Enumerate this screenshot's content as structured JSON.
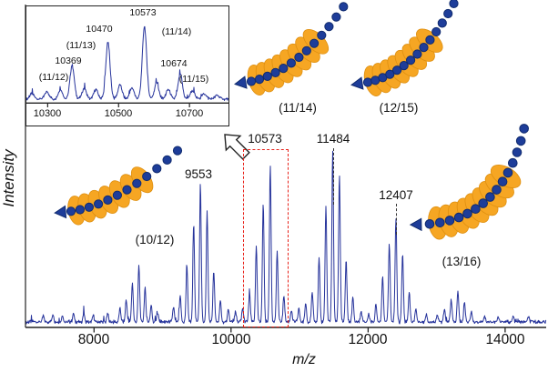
{
  "chart_data": {
    "type": "line",
    "xlabel": "m/z",
    "ylabel": "Intensity",
    "xlim": [
      7000,
      14600
    ],
    "x_ticks": [
      8000,
      10000,
      12000,
      14000
    ],
    "line_color": "#26339B",
    "peak_sigma": 12,
    "peak_labels": [
      "9553",
      "10573",
      "11484",
      "12407"
    ],
    "main_peaks": [
      [
        7260,
        0.035
      ],
      [
        7400,
        0.05
      ],
      [
        7540,
        0.04
      ],
      [
        7700,
        0.05
      ],
      [
        7850,
        0.055
      ],
      [
        7990,
        0.04
      ],
      [
        8200,
        0.05
      ],
      [
        8380,
        0.08
      ],
      [
        8470,
        0.13
      ],
      [
        8560,
        0.23
      ],
      [
        8655,
        0.33
      ],
      [
        8745,
        0.2
      ],
      [
        8835,
        0.1
      ],
      [
        8930,
        0.05
      ],
      [
        9160,
        0.09
      ],
      [
        9258,
        0.15
      ],
      [
        9356,
        0.33
      ],
      [
        9455,
        0.57
      ],
      [
        9553,
        0.8
      ],
      [
        9651,
        0.65
      ],
      [
        9748,
        0.3
      ],
      [
        9845,
        0.12
      ],
      [
        9960,
        0.07
      ],
      [
        10065,
        0.06
      ],
      [
        10170,
        0.08
      ],
      [
        10270,
        0.17
      ],
      [
        10369,
        0.44
      ],
      [
        10470,
        0.7
      ],
      [
        10573,
        0.93
      ],
      [
        10674,
        0.42
      ],
      [
        10772,
        0.16
      ],
      [
        10880,
        0.07
      ],
      [
        10990,
        0.08
      ],
      [
        11090,
        0.11
      ],
      [
        11185,
        0.17
      ],
      [
        11285,
        0.38
      ],
      [
        11385,
        0.68
      ],
      [
        11484,
        1.0
      ],
      [
        11582,
        0.87
      ],
      [
        11680,
        0.36
      ],
      [
        11778,
        0.14
      ],
      [
        11900,
        0.06
      ],
      [
        12010,
        0.05
      ],
      [
        12115,
        0.1
      ],
      [
        12213,
        0.27
      ],
      [
        12310,
        0.46
      ],
      [
        12407,
        0.62
      ],
      [
        12504,
        0.4
      ],
      [
        12601,
        0.18
      ],
      [
        12698,
        0.08
      ],
      [
        12850,
        0.045
      ],
      [
        13010,
        0.045
      ],
      [
        13115,
        0.07
      ],
      [
        13213,
        0.13
      ],
      [
        13311,
        0.18
      ],
      [
        13409,
        0.11
      ],
      [
        13507,
        0.06
      ],
      [
        13700,
        0.035
      ],
      [
        13900,
        0.03
      ],
      [
        14120,
        0.03
      ],
      [
        14340,
        0.028
      ]
    ],
    "highlight_box": {
      "x_range": [
        10200,
        10830
      ],
      "color": "#E8221A"
    },
    "inset": {
      "xlim": [
        10240,
        10810
      ],
      "x_ticks": [
        10300,
        10500,
        10700
      ],
      "peak_sigma": 6,
      "assignments": [
        {
          "mz": 10369,
          "species": "(11/12)"
        },
        {
          "mz": 10470,
          "species": "(11/13)"
        },
        {
          "mz": 10573,
          "species": "(11/14)"
        },
        {
          "mz": 10674,
          "species": "(11/15)"
        }
      ],
      "profile_peaks": [
        [
          10255,
          0.07
        ],
        [
          10298,
          0.1
        ],
        [
          10336,
          0.13
        ],
        [
          10369,
          0.46
        ],
        [
          10403,
          0.15
        ],
        [
          10436,
          0.13
        ],
        [
          10470,
          0.78
        ],
        [
          10504,
          0.19
        ],
        [
          10538,
          0.15
        ],
        [
          10573,
          1.0
        ],
        [
          10607,
          0.22
        ],
        [
          10640,
          0.13
        ],
        [
          10674,
          0.34
        ],
        [
          10708,
          0.11
        ],
        [
          10742,
          0.07
        ],
        [
          10778,
          0.05
        ]
      ]
    },
    "cartoons": [
      {
        "label": "(10/12)"
      },
      {
        "label": "(11/14)"
      },
      {
        "label": "(12/15)"
      },
      {
        "label": "(13/16)"
      }
    ],
    "colors": {
      "ring": "#F6A623",
      "ring_edge": "#DE8F10",
      "bead": "#1E3D99",
      "bead_edge": "#102B6E"
    }
  }
}
